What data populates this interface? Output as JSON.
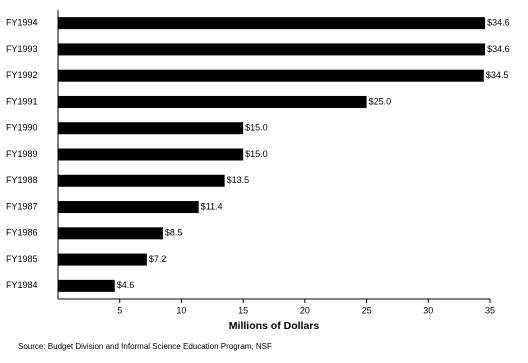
{
  "chart_data": {
    "type": "bar",
    "orientation": "horizontal",
    "categories": [
      "FY1994",
      "FY1993",
      "FY1992",
      "FY1991",
      "FY1990",
      "FY1989",
      "FY1988",
      "FY1987",
      "FY1986",
      "FY1985",
      "FY1984"
    ],
    "values": [
      34.6,
      34.6,
      34.5,
      25.0,
      15.0,
      15.0,
      13.5,
      11.4,
      8.5,
      7.2,
      4.6
    ],
    "value_labels": [
      "$34.6",
      "$34.6",
      "$34.5",
      "$25.0",
      "$15.0",
      "$15.0",
      "$13.5",
      "$11.4",
      "$8.5",
      "$7.2",
      "$4.6"
    ],
    "color": "#000000",
    "xlim": [
      0,
      35
    ],
    "xticks": [
      5,
      10,
      15,
      20,
      25,
      30,
      35
    ],
    "x_label": "Millions of Dollars",
    "source": "Source:  Budget Division and Informal Science Education Program, NSF",
    "grid": false
  }
}
